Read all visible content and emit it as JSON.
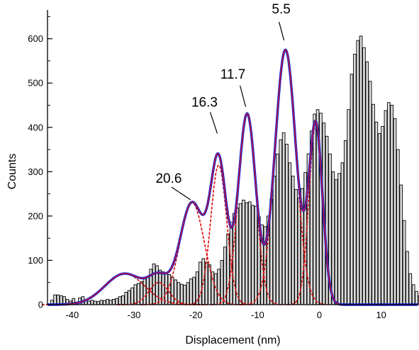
{
  "chart_data": {
    "type": "bar",
    "title": "",
    "xlabel": "Displacement (nm)",
    "ylabel": "Counts",
    "xlim": [
      -44,
      16
    ],
    "ylim": [
      0,
      665
    ],
    "x_ticks": [
      -40,
      -30,
      -20,
      -10,
      0,
      10
    ],
    "y_ticks": [
      0,
      100,
      200,
      300,
      400,
      500,
      600
    ],
    "grid": false,
    "legend": "none",
    "histogram": {
      "bin_width": 0.5,
      "x_start": -43.5,
      "counts": [
        10,
        22,
        22,
        20,
        18,
        12,
        8,
        14,
        6,
        15,
        18,
        10,
        8,
        10,
        8,
        7,
        10,
        9,
        12,
        10,
        12,
        14,
        18,
        20,
        28,
        32,
        38,
        45,
        48,
        52,
        58,
        64,
        80,
        92,
        88,
        78,
        74,
        70,
        68,
        62,
        56,
        50,
        46,
        44,
        50,
        58,
        62,
        74,
        96,
        104,
        96,
        90,
        74,
        70,
        80,
        100,
        130,
        160,
        186,
        206,
        218,
        228,
        236,
        230,
        232,
        224,
        222,
        198,
        180,
        176,
        200,
        238,
        290,
        340,
        372,
        388,
        362,
        320,
        290,
        260,
        240,
        262,
        298,
        340,
        392,
        430,
        440,
        432,
        410,
        380,
        340,
        300,
        282,
        296,
        320,
        370,
        440,
        520,
        565,
        596,
        606,
        580,
        548,
        504,
        452,
        412,
        386,
        402,
        438,
        456,
        450,
        420,
        350,
        270,
        190,
        120,
        70,
        45,
        30,
        20,
        14,
        8,
        6,
        4,
        3
      ]
    },
    "envelope_peaks": [
      {
        "center": -31.5,
        "amplitude": 70,
        "sigma": 3.2
      },
      {
        "center": -26.0,
        "amplitude": 50,
        "sigma": 1.6
      },
      {
        "center": -20.6,
        "amplitude": 230,
        "sigma": 2.0
      },
      {
        "center": -16.3,
        "amplitude": 315,
        "sigma": 1.3
      },
      {
        "center": -11.7,
        "amplitude": 430,
        "sigma": 1.4
      },
      {
        "center": -5.5,
        "amplitude": 575,
        "sigma": 1.7
      },
      {
        "center": -0.6,
        "amplitude": 405,
        "sigma": 1.1
      }
    ],
    "series": [
      {
        "type": "histogram",
        "color": "#000000"
      },
      {
        "type": "total_fit",
        "color": "#0a1fe0"
      },
      {
        "type": "peak_fit",
        "color": "#e01515"
      }
    ],
    "annotations": [
      {
        "text": "20.6",
        "x": -20.6,
        "y": 230
      },
      {
        "text": "16.3",
        "x": -16.3,
        "y": 380
      },
      {
        "text": "11.7",
        "x": -11.7,
        "y": 440
      },
      {
        "text": "5.5",
        "x": -5.5,
        "y": 590
      }
    ]
  }
}
